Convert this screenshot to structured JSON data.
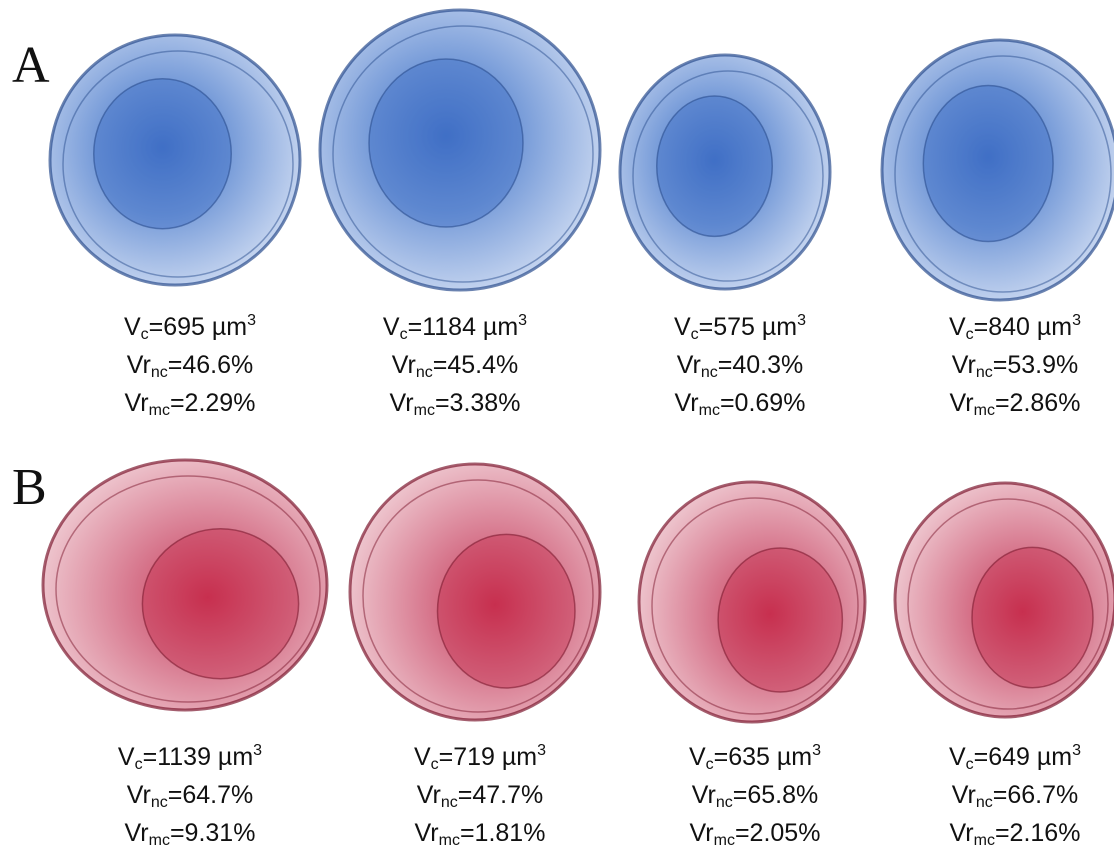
{
  "panels": [
    {
      "label": "A",
      "cells": [
        {
          "volume": {
            "symbol": "V",
            "sub": "c",
            "value": "=695 µm",
            "sup": "3"
          },
          "nucleus": {
            "symbol": "Vr",
            "sub": "nc",
            "value": "=46.6%"
          },
          "mito": {
            "symbol": "Vr",
            "sub": "mc",
            "value": "=2.29%"
          }
        },
        {
          "volume": {
            "symbol": "V",
            "sub": "c",
            "value": "=1184 µm",
            "sup": "3"
          },
          "nucleus": {
            "symbol": "Vr",
            "sub": "nc",
            "value": "=45.4%"
          },
          "mito": {
            "symbol": "Vr",
            "sub": "mc",
            "value": "=3.38%"
          }
        },
        {
          "volume": {
            "symbol": "V",
            "sub": "c",
            "value": "=575 µm",
            "sup": "3"
          },
          "nucleus": {
            "symbol": "Vr",
            "sub": "nc",
            "value": "=40.3%"
          },
          "mito": {
            "symbol": "Vr",
            "sub": "mc",
            "value": "=0.69%"
          }
        },
        {
          "volume": {
            "symbol": "V",
            "sub": "c",
            "value": "=840 µm",
            "sup": "3"
          },
          "nucleus": {
            "symbol": "Vr",
            "sub": "nc",
            "value": "=53.9%"
          },
          "mito": {
            "symbol": "Vr",
            "sub": "mc",
            "value": "=2.86%"
          }
        }
      ]
    },
    {
      "label": "B",
      "cells": [
        {
          "volume": {
            "symbol": "V",
            "sub": "c",
            "value": "=1139 µm",
            "sup": "3"
          },
          "nucleus": {
            "symbol": "Vr",
            "sub": "nc",
            "value": "=64.7%"
          },
          "mito": {
            "symbol": "Vr",
            "sub": "mc",
            "value": "=9.31%"
          }
        },
        {
          "volume": {
            "symbol": "V",
            "sub": "c",
            "value": "=719 µm",
            "sup": "3"
          },
          "nucleus": {
            "symbol": "Vr",
            "sub": "nc",
            "value": "=47.7%"
          },
          "mito": {
            "symbol": "Vr",
            "sub": "mc",
            "value": "=1.81%"
          }
        },
        {
          "volume": {
            "symbol": "V",
            "sub": "c",
            "value": "=635 µm",
            "sup": "3"
          },
          "nucleus": {
            "symbol": "Vr",
            "sub": "nc",
            "value": "=65.8%"
          },
          "mito": {
            "symbol": "Vr",
            "sub": "mc",
            "value": "=2.05%"
          }
        },
        {
          "volume": {
            "symbol": "V",
            "sub": "c",
            "value": "=649 µm",
            "sup": "3"
          },
          "nucleus": {
            "symbol": "Vr",
            "sub": "nc",
            "value": "=66.7%"
          },
          "mito": {
            "symbol": "Vr",
            "sub": "mc",
            "value": "=2.16%"
          }
        }
      ]
    }
  ]
}
